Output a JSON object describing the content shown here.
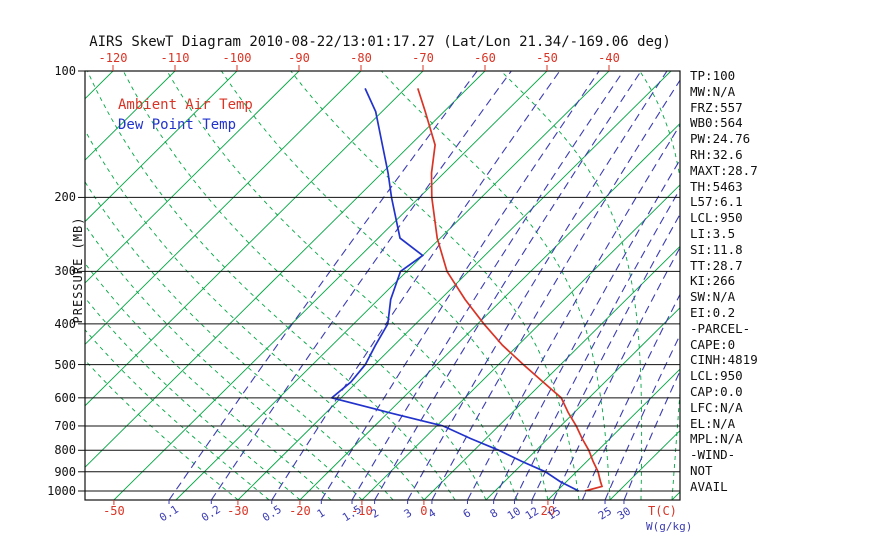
{
  "title": "AIRS SkewT Diagram 2010-08-22/13:01:17.27 (Lat/Lon 21.34/-169.06 deg)",
  "colors": {
    "red": "#d93425",
    "green": "#00a742",
    "purple": "#3c3cb4",
    "blue": "#2233cc",
    "black": "#111111"
  },
  "legend": {
    "ambient": "Ambient Air Temp",
    "dew": "Dew Point Temp"
  },
  "axes": {
    "pressure_axis_title": "PRESSURE (MB)",
    "pressure_labels": [
      100,
      200,
      300,
      400,
      500,
      600,
      700,
      800,
      900,
      1000
    ],
    "top_temp_labels": [
      -120,
      -110,
      -100,
      -90,
      -80,
      -70,
      -60,
      -50,
      -40
    ],
    "bottom": {
      "temp_labels": [
        -50,
        -30,
        -20,
        -10,
        0,
        20
      ],
      "mixing_labels": [
        0.1,
        0.2,
        0.5,
        1,
        1.5,
        2,
        3,
        4,
        6,
        8,
        10,
        12,
        15,
        25,
        30
      ],
      "temp_unit": "T(C)",
      "mixing_unit": "W(g/kg)"
    }
  },
  "stats": [
    "TP:100",
    "MW:N/A",
    "FRZ:557",
    "WB0:564",
    "PW:24.76",
    "RH:32.6",
    "MAXT:28.7",
    "TH:5463",
    "L57:6.1",
    "LCL:950",
    "LI:3.5",
    "SI:11.8",
    "TT:28.7",
    "KI:266",
    "SW:N/A",
    "EI:0.2",
    "-PARCEL-",
    "CAPE:0",
    "CINH:4819",
    "LCL:950",
    "CAP:0.0",
    "LFC:N/A",
    "EL:N/A",
    "MPL:N/A",
    "-WIND-",
    "NOT",
    "AVAIL"
  ],
  "chart_data": {
    "type": "line",
    "title": "AIRS SkewT Diagram 2010-08-22/13:01:17.27 (Lat/Lon 21.34/-169.06 deg)",
    "xlabel": "T(C)",
    "ylabel": "PRESSURE (MB)",
    "top_axis_range_c": [
      -120,
      -40
    ],
    "pressure_range_mb": [
      100,
      1050
    ],
    "grid": "skew-t log-p",
    "legend_position": "upper-left-inside",
    "series": [
      {
        "name": "Ambient Air Temp",
        "color": "#d93425",
        "units": {
          "x": "deg C",
          "y": "mb"
        },
        "points": [
          [
            1000,
            24.5
          ],
          [
            975,
            26.5
          ],
          [
            950,
            25.5
          ],
          [
            925,
            24.5
          ],
          [
            900,
            23.5
          ],
          [
            850,
            21.0
          ],
          [
            800,
            18.5
          ],
          [
            750,
            15.5
          ],
          [
            700,
            12.5
          ],
          [
            650,
            9.0
          ],
          [
            600,
            5.5
          ],
          [
            550,
            0.0
          ],
          [
            500,
            -6.0
          ],
          [
            450,
            -12.5
          ],
          [
            400,
            -19.0
          ],
          [
            350,
            -26.0
          ],
          [
            300,
            -33.5
          ],
          [
            250,
            -40.5
          ],
          [
            200,
            -48.0
          ],
          [
            175,
            -52.0
          ],
          [
            150,
            -56.0
          ],
          [
            125,
            -63.0
          ],
          [
            110,
            -68.0
          ]
        ]
      },
      {
        "name": "Dew Point Temp",
        "color": "#2233cc",
        "units": {
          "x": "deg C",
          "y": "mb"
        },
        "points": [
          [
            1000,
            23.5
          ],
          [
            950,
            19.0
          ],
          [
            900,
            15.0
          ],
          [
            850,
            9.5
          ],
          [
            800,
            4.0
          ],
          [
            750,
            -2.5
          ],
          [
            700,
            -9.0
          ],
          [
            650,
            -20.0
          ],
          [
            600,
            -31.5
          ],
          [
            550,
            -31.0
          ],
          [
            500,
            -31.5
          ],
          [
            450,
            -33.0
          ],
          [
            400,
            -34.5
          ],
          [
            350,
            -38.0
          ],
          [
            300,
            -41.0
          ],
          [
            275,
            -40.0
          ],
          [
            250,
            -46.5
          ],
          [
            200,
            -54.5
          ],
          [
            175,
            -59.0
          ],
          [
            150,
            -64.5
          ],
          [
            125,
            -71.0
          ],
          [
            110,
            -76.5
          ]
        ]
      }
    ],
    "isotherms": {
      "min": -160,
      "max": 40,
      "step": 10
    },
    "moist_adiabats": {
      "start_min": -30,
      "start_max": 45,
      "step": 5
    },
    "mixing_ratio_lines_gkg": [
      0.1,
      0.2,
      0.5,
      1,
      1.5,
      2,
      3,
      4,
      6,
      8,
      10,
      12,
      15,
      20,
      25,
      30
    ]
  }
}
